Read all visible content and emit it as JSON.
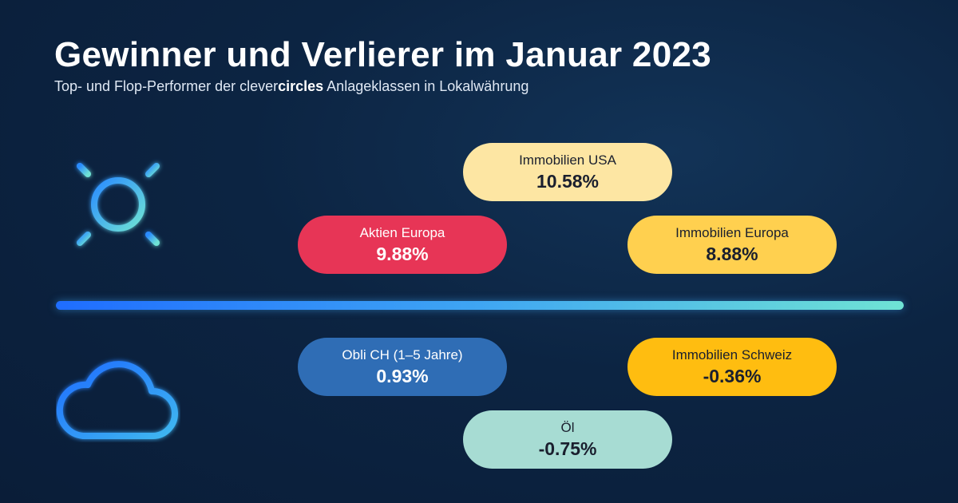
{
  "header": {
    "title": "Gewinner und Verlierer im Januar 2023",
    "subtitle_prefix": "Top- und Flop-Performer der clever",
    "subtitle_bold": "circles",
    "subtitle_suffix": " Anlageklassen in Lokalwährung"
  },
  "icons": {
    "winners": "sun-icon",
    "losers": "cloud-icon"
  },
  "colors": {
    "background": "#0c2442",
    "divider_start": "#1f6dff",
    "divider_end": "#6fe3d4"
  },
  "winners": [
    {
      "name": "Immobilien USA",
      "value": "10.58%",
      "color": "#fde6a3"
    },
    {
      "name": "Aktien Europa",
      "value": "9.88%",
      "color": "#e73556"
    },
    {
      "name": "Immobilien Europa",
      "value": "8.88%",
      "color": "#ffd04f"
    }
  ],
  "losers": [
    {
      "name": "Obli CH (1–5 Jahre)",
      "value": "0.93%",
      "color": "#2f6db5"
    },
    {
      "name": "Immobilien Schweiz",
      "value": "-0.36%",
      "color": "#ffbd10"
    },
    {
      "name": "Öl",
      "value": "-0.75%",
      "color": "#a7dcd3"
    }
  ]
}
